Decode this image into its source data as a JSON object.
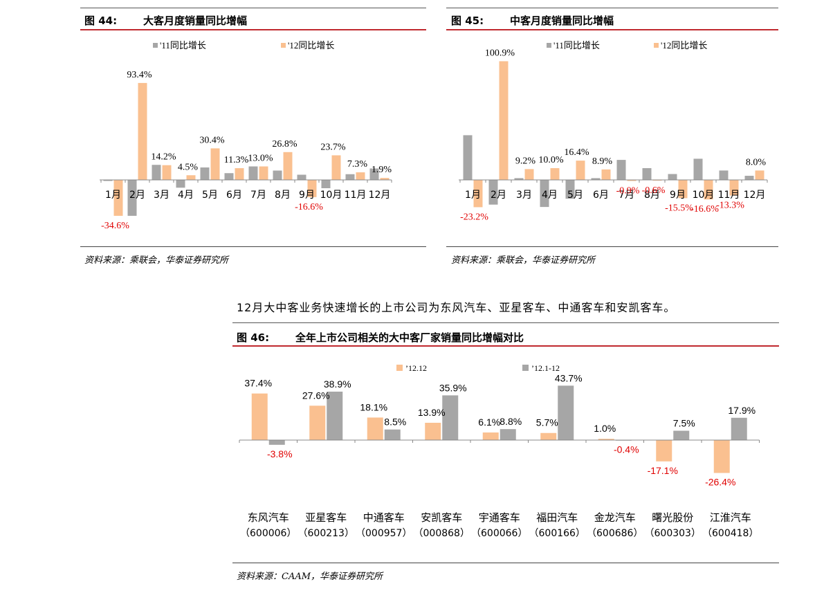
{
  "colors": {
    "series_2011": "#a6a6a6",
    "series_2012": "#fac090",
    "negative_label": "#e00000",
    "title_rule": "#c0282e"
  },
  "fig44": {
    "number": "图 44:",
    "title": "大客月度销量同比增幅",
    "source": "资料来源：乘联会，华泰证券研究所"
  },
  "fig45": {
    "number": "图 45:",
    "title": "中客月度销量同比增幅",
    "source": "资料来源：乘联会，华泰证券研究所"
  },
  "paragraph": "12月大中客业务快速增长的上市公司为东风汽车、亚星客车、中通客车和安凯客车。",
  "fig46": {
    "number": "图 46:",
    "title": "全年上市公司相关的大中客厂家销量同比增幅对比",
    "source": "资料来源：CAAM，华泰证券研究所"
  },
  "chart_data": [
    {
      "type": "bar",
      "categories": [
        "1月",
        "2月",
        "3月",
        "4月",
        "5月",
        "6月",
        "7月",
        "8月",
        "9月",
        "10月",
        "11月",
        "12月"
      ],
      "series": [
        {
          "name": "'11同比增长",
          "values": [
            -1.0,
            -34.6,
            14.5,
            -7.5,
            12.0,
            6.5,
            13.0,
            9.0,
            5.0,
            -8.0,
            5.5,
            11.0
          ]
        },
        {
          "name": "'12同比增长",
          "values": [
            -34.6,
            93.4,
            14.2,
            4.5,
            30.4,
            11.3,
            13.0,
            26.8,
            -16.6,
            23.7,
            7.3,
            1.9
          ]
        }
      ],
      "labels": [
        "-34.6%",
        "93.4%",
        "14.2%",
        "4.5%",
        "30.4%",
        "11.3%",
        "13.0%",
        "26.8%",
        "-16.6%",
        "23.7%",
        "7.3%",
        "1.9%"
      ],
      "legend": "top",
      "grid": false
    },
    {
      "type": "bar",
      "categories": [
        "1月",
        "2月",
        "3月",
        "4月",
        "5月",
        "6月",
        "7月",
        "8月",
        "9月",
        "10月",
        "11月",
        "12月"
      ],
      "series": [
        {
          "name": "'11同比增长",
          "values": [
            38.0,
            -21.0,
            1.5,
            -23.0,
            -16.0,
            1.5,
            17.0,
            10.0,
            5.0,
            18.0,
            8.0,
            3.5
          ]
        },
        {
          "name": "'12同比增长",
          "values": [
            -23.2,
            100.9,
            9.2,
            10.0,
            16.4,
            8.9,
            -0.9,
            -0.6,
            -15.5,
            -16.6,
            -13.3,
            8.0
          ]
        }
      ],
      "labels": [
        "-23.2%",
        "100.9%",
        "9.2%",
        "10.0%",
        "16.4%",
        "8.9%",
        "-0.9%",
        "-0.6%",
        "-15.5%",
        "-16.6%",
        "-13.3%",
        "8.0%"
      ],
      "legend": "top",
      "grid": false
    },
    {
      "type": "bar",
      "categories": [
        "东风汽车",
        "亚星客车",
        "中通客车",
        "安凯客车",
        "宇通客车",
        "福田汽车",
        "金龙汽车",
        "曙光股份",
        "江淮汽车"
      ],
      "codes": [
        "（600006）",
        "（600213）",
        "（000957）",
        "（000868）",
        "（600066）",
        "（600166）",
        "（600686）",
        "（600303）",
        "（600418）"
      ],
      "series": [
        {
          "name": "’12.12",
          "values": [
            37.4,
            27.6,
            18.1,
            13.9,
            6.1,
            5.7,
            1.0,
            -17.1,
            -26.4
          ]
        },
        {
          "name": "’12.1-12",
          "values": [
            -3.8,
            38.9,
            8.5,
            35.9,
            8.8,
            43.7,
            -0.4,
            7.5,
            17.9
          ]
        }
      ],
      "labels_a": [
        "37.4%",
        "27.6%",
        "18.1%",
        "13.9%",
        "6.1%",
        "5.7%",
        "1.0%",
        "-17.1%",
        "-26.4%"
      ],
      "labels_b": [
        "-3.8%",
        "38.9%",
        "8.5%",
        "35.9%",
        "8.8%",
        "43.7%",
        "-0.4%",
        "7.5%",
        "17.9%"
      ],
      "legend": "top",
      "grid": false
    }
  ]
}
